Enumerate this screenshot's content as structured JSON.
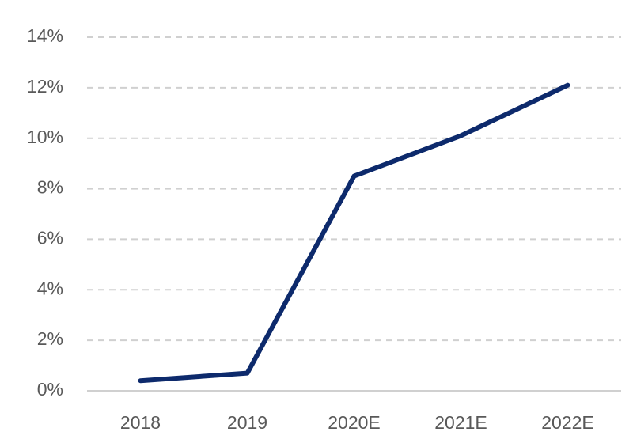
{
  "chart_data": {
    "type": "line",
    "categories": [
      "2018",
      "2019",
      "2020E",
      "2021E",
      "2022E"
    ],
    "series": [
      {
        "color": "#0d2a6c",
        "values": [
          0.4,
          0.7,
          8.5,
          10.1,
          12.1
        ]
      }
    ],
    "ylim": [
      0,
      14
    ],
    "yticks": [
      {
        "value": 0,
        "label": "0%"
      },
      {
        "value": 2,
        "label": "2%"
      },
      {
        "value": 4,
        "label": "4%"
      },
      {
        "value": 6,
        "label": "6%"
      },
      {
        "value": 8,
        "label": "8%"
      },
      {
        "value": 10,
        "label": "10%"
      },
      {
        "value": 12,
        "label": "12%"
      },
      {
        "value": 14,
        "label": "14%"
      }
    ],
    "grid": true
  }
}
